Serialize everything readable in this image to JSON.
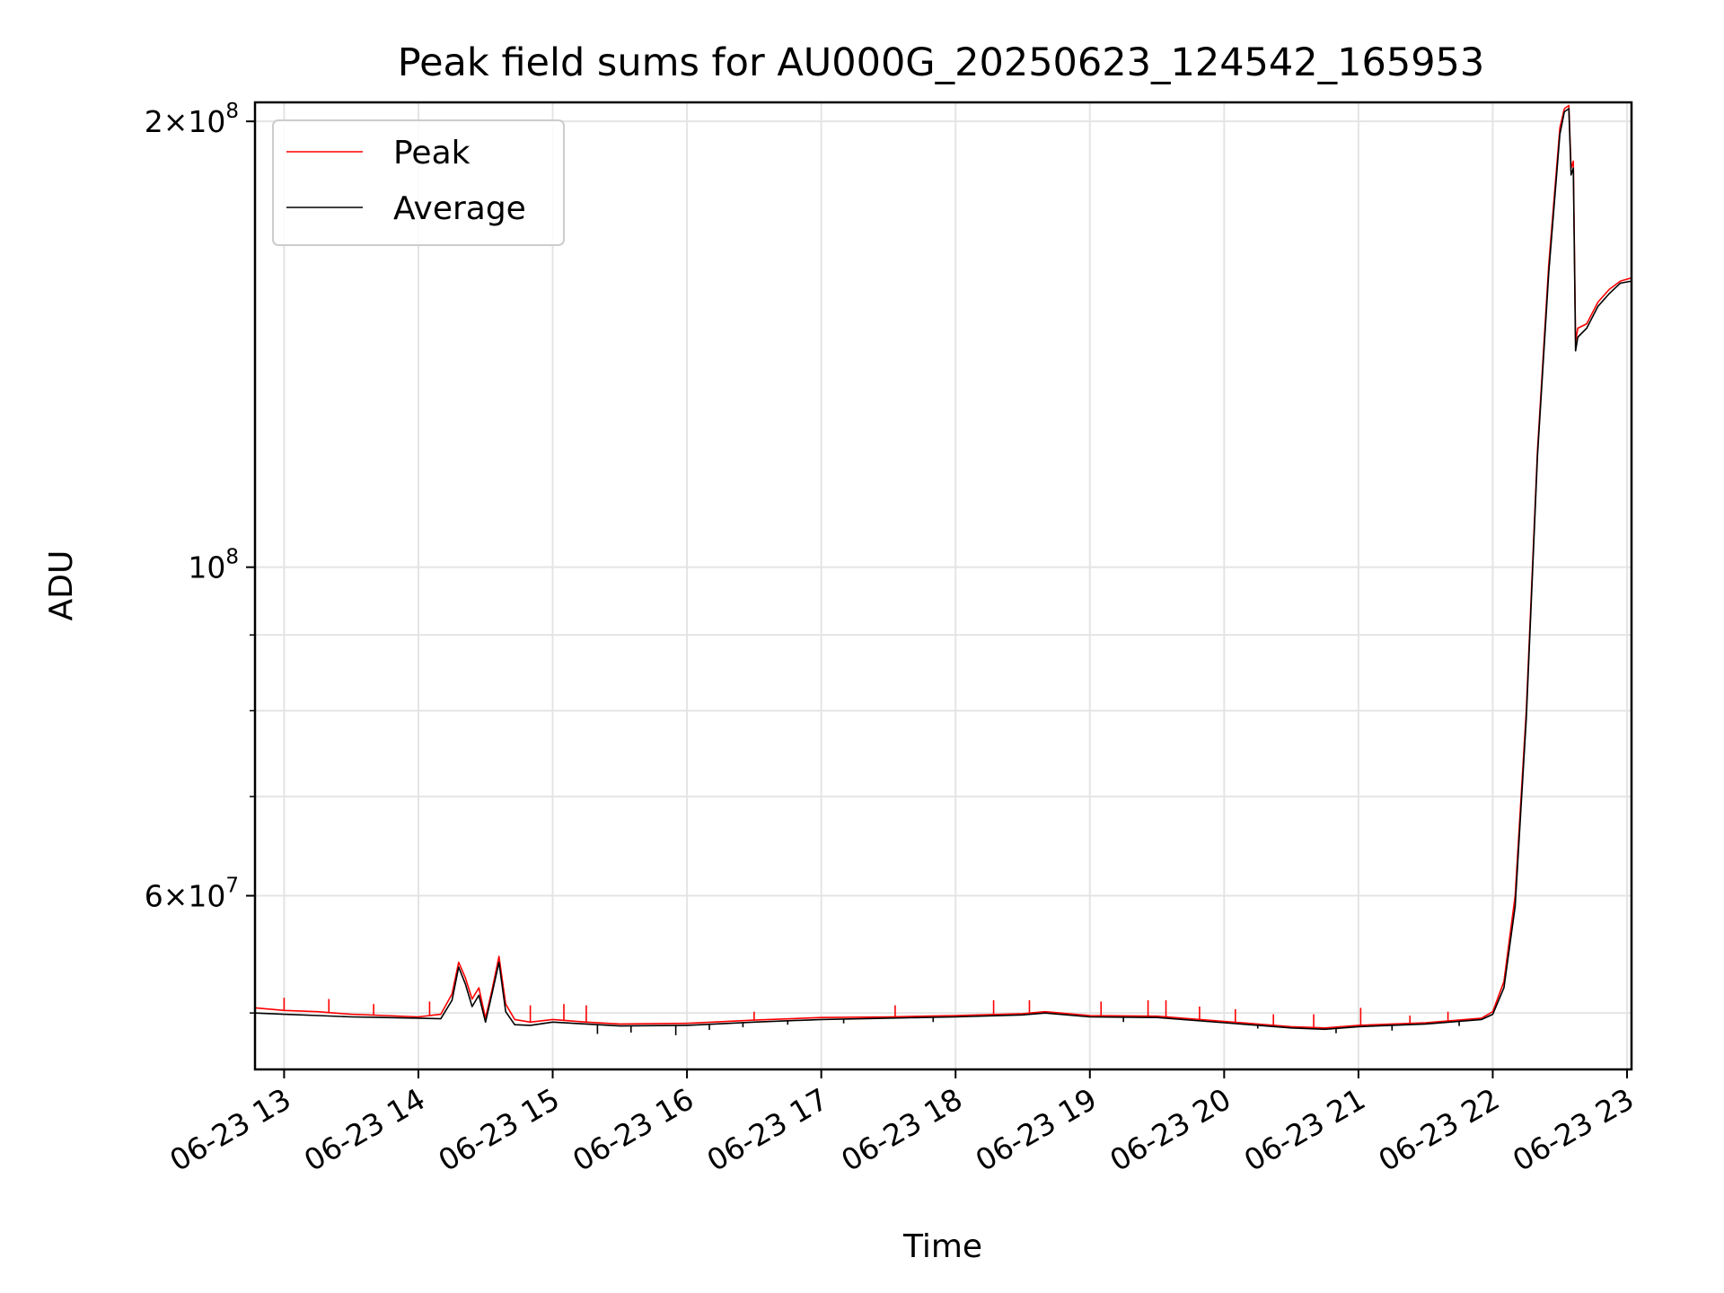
{
  "chart_data": {
    "type": "line",
    "title": "Peak field sums for AU000G_20250623_124542_165953",
    "xlabel": "Time",
    "ylabel": "ADU",
    "yscale": "log",
    "grid": true,
    "legend_position": "top-left",
    "xlim": [
      "2025-06-23 12:47",
      "2025-06-23 23:02"
    ],
    "ylim": [
      45800000,
      206000000
    ],
    "x_ticks": [
      {
        "x": "2025-06-23 13:00",
        "label": "06-23 13"
      },
      {
        "x": "2025-06-23 14:00",
        "label": "06-23 14"
      },
      {
        "x": "2025-06-23 15:00",
        "label": "06-23 15"
      },
      {
        "x": "2025-06-23 16:00",
        "label": "06-23 16"
      },
      {
        "x": "2025-06-23 17:00",
        "label": "06-23 17"
      },
      {
        "x": "2025-06-23 18:00",
        "label": "06-23 18"
      },
      {
        "x": "2025-06-23 19:00",
        "label": "06-23 19"
      },
      {
        "x": "2025-06-23 20:00",
        "label": "06-23 20"
      },
      {
        "x": "2025-06-23 21:00",
        "label": "06-23 21"
      },
      {
        "x": "2025-06-23 22:00",
        "label": "06-23 22"
      },
      {
        "x": "2025-06-23 23:00",
        "label": "06-23 23"
      }
    ],
    "y_major_ticks": [
      {
        "value": 60000000,
        "mantissa": "6",
        "multiplier": "×10",
        "exponent": "7"
      },
      {
        "value": 100000000,
        "mantissa": "",
        "multiplier": "10",
        "exponent": "8"
      },
      {
        "value": 200000000,
        "mantissa": "2",
        "multiplier": "×10",
        "exponent": "8"
      }
    ],
    "y_minor_ticks": [
      50000000,
      70000000,
      80000000,
      90000000
    ],
    "series": [
      {
        "name": "Peak",
        "color": "#ff0000",
        "points": [
          [
            "2025-06-23 12:47",
            50400000
          ],
          [
            "2025-06-23 13:00",
            50200000
          ],
          [
            "2025-06-23 13:15",
            50100000
          ],
          [
            "2025-06-23 13:30",
            49900000
          ],
          [
            "2025-06-23 13:45",
            49800000
          ],
          [
            "2025-06-23 14:00",
            49700000
          ],
          [
            "2025-06-23 14:10",
            49900000
          ],
          [
            "2025-06-23 14:15",
            51500000
          ],
          [
            "2025-06-23 14:18",
            54100000
          ],
          [
            "2025-06-23 14:21",
            52800000
          ],
          [
            "2025-06-23 14:24",
            51100000
          ],
          [
            "2025-06-23 14:27",
            52000000
          ],
          [
            "2025-06-23 14:30",
            49600000
          ],
          [
            "2025-06-23 14:33",
            51900000
          ],
          [
            "2025-06-23 14:36",
            54600000
          ],
          [
            "2025-06-23 14:39",
            50700000
          ],
          [
            "2025-06-23 14:43",
            49500000
          ],
          [
            "2025-06-23 14:50",
            49300000
          ],
          [
            "2025-06-23 15:00",
            49500000
          ],
          [
            "2025-06-23 15:15",
            49300000
          ],
          [
            "2025-06-23 15:30",
            49150000
          ],
          [
            "2025-06-23 16:00",
            49200000
          ],
          [
            "2025-06-23 16:30",
            49450000
          ],
          [
            "2025-06-23 17:00",
            49650000
          ],
          [
            "2025-06-23 17:30",
            49700000
          ],
          [
            "2025-06-23 18:00",
            49800000
          ],
          [
            "2025-06-23 18:30",
            49950000
          ],
          [
            "2025-06-23 18:40",
            50100000
          ],
          [
            "2025-06-23 19:00",
            49800000
          ],
          [
            "2025-06-23 19:30",
            49750000
          ],
          [
            "2025-06-23 20:00",
            49350000
          ],
          [
            "2025-06-23 20:30",
            48950000
          ],
          [
            "2025-06-23 20:45",
            48850000
          ],
          [
            "2025-06-23 21:00",
            49050000
          ],
          [
            "2025-06-23 21:30",
            49250000
          ],
          [
            "2025-06-23 21:55",
            49600000
          ],
          [
            "2025-06-23 22:00",
            50100000
          ],
          [
            "2025-06-23 22:05",
            52500000
          ],
          [
            "2025-06-23 22:10",
            60000000
          ],
          [
            "2025-06-23 22:15",
            80000000
          ],
          [
            "2025-06-23 22:20",
            120000000
          ],
          [
            "2025-06-23 22:25",
            160000000
          ],
          [
            "2025-06-23 22:30",
            198000000
          ],
          [
            "2025-06-23 22:32",
            204000000
          ],
          [
            "2025-06-23 22:34",
            205000000
          ],
          [
            "2025-06-23 22:35",
            186000000
          ],
          [
            "2025-06-23 22:36",
            188000000
          ],
          [
            "2025-06-23 22:37",
            142000000
          ],
          [
            "2025-06-23 22:38",
            145000000
          ],
          [
            "2025-06-23 22:42",
            146000000
          ],
          [
            "2025-06-23 22:47",
            151000000
          ],
          [
            "2025-06-23 22:52",
            154000000
          ],
          [
            "2025-06-23 22:57",
            156000000
          ],
          [
            "2025-06-23 23:02",
            156800000
          ]
        ],
        "spikes": [
          [
            "2025-06-23 13:00",
            51200000
          ],
          [
            "2025-06-23 13:20",
            51100000
          ],
          [
            "2025-06-23 13:40",
            50700000
          ],
          [
            "2025-06-23 14:05",
            50900000
          ],
          [
            "2025-06-23 14:50",
            50600000
          ],
          [
            "2025-06-23 15:05",
            50700000
          ],
          [
            "2025-06-23 15:15",
            50600000
          ],
          [
            "2025-06-23 16:30",
            50100000
          ],
          [
            "2025-06-23 17:33",
            50600000
          ],
          [
            "2025-06-23 18:17",
            51000000
          ],
          [
            "2025-06-23 18:33",
            51000000
          ],
          [
            "2025-06-23 19:05",
            50900000
          ],
          [
            "2025-06-23 19:26",
            51000000
          ],
          [
            "2025-06-23 19:34",
            51000000
          ],
          [
            "2025-06-23 19:49",
            50500000
          ],
          [
            "2025-06-23 20:05",
            50300000
          ],
          [
            "2025-06-23 20:22",
            49900000
          ],
          [
            "2025-06-23 20:40",
            49900000
          ],
          [
            "2025-06-23 21:01",
            50400000
          ],
          [
            "2025-06-23 21:23",
            49800000
          ],
          [
            "2025-06-23 21:40",
            50100000
          ]
        ]
      },
      {
        "name": "Average",
        "color": "#000000",
        "points": [
          [
            "2025-06-23 12:47",
            50000000
          ],
          [
            "2025-06-23 13:00",
            49900000
          ],
          [
            "2025-06-23 13:15",
            49800000
          ],
          [
            "2025-06-23 13:30",
            49700000
          ],
          [
            "2025-06-23 13:45",
            49650000
          ],
          [
            "2025-06-23 14:00",
            49600000
          ],
          [
            "2025-06-23 14:10",
            49550000
          ],
          [
            "2025-06-23 14:15",
            51000000
          ],
          [
            "2025-06-23 14:18",
            53700000
          ],
          [
            "2025-06-23 14:21",
            52300000
          ],
          [
            "2025-06-23 14:24",
            50500000
          ],
          [
            "2025-06-23 14:27",
            51400000
          ],
          [
            "2025-06-23 14:30",
            49300000
          ],
          [
            "2025-06-23 14:33",
            51600000
          ],
          [
            "2025-06-23 14:36",
            54100000
          ],
          [
            "2025-06-23 14:39",
            50100000
          ],
          [
            "2025-06-23 14:43",
            49100000
          ],
          [
            "2025-06-23 14:50",
            49050000
          ],
          [
            "2025-06-23 15:00",
            49300000
          ],
          [
            "2025-06-23 15:15",
            49150000
          ],
          [
            "2025-06-23 15:30",
            49000000
          ],
          [
            "2025-06-23 16:00",
            49050000
          ],
          [
            "2025-06-23 16:30",
            49300000
          ],
          [
            "2025-06-23 17:00",
            49500000
          ],
          [
            "2025-06-23 17:30",
            49600000
          ],
          [
            "2025-06-23 18:00",
            49700000
          ],
          [
            "2025-06-23 18:30",
            49850000
          ],
          [
            "2025-06-23 18:40",
            50000000
          ],
          [
            "2025-06-23 19:00",
            49700000
          ],
          [
            "2025-06-23 19:30",
            49650000
          ],
          [
            "2025-06-23 20:00",
            49250000
          ],
          [
            "2025-06-23 20:30",
            48850000
          ],
          [
            "2025-06-23 20:45",
            48750000
          ],
          [
            "2025-06-23 21:00",
            48950000
          ],
          [
            "2025-06-23 21:30",
            49150000
          ],
          [
            "2025-06-23 21:55",
            49500000
          ],
          [
            "2025-06-23 22:00",
            49900000
          ],
          [
            "2025-06-23 22:05",
            52000000
          ],
          [
            "2025-06-23 22:10",
            59000000
          ],
          [
            "2025-06-23 22:15",
            79000000
          ],
          [
            "2025-06-23 22:20",
            119000000
          ],
          [
            "2025-06-23 22:25",
            158000000
          ],
          [
            "2025-06-23 22:30",
            196000000
          ],
          [
            "2025-06-23 22:32",
            203000000
          ],
          [
            "2025-06-23 22:34",
            204000000
          ],
          [
            "2025-06-23 22:35",
            184000000
          ],
          [
            "2025-06-23 22:36",
            186000000
          ],
          [
            "2025-06-23 22:37",
            140000000
          ],
          [
            "2025-06-23 22:38",
            143000000
          ],
          [
            "2025-06-23 22:42",
            145000000
          ],
          [
            "2025-06-23 22:47",
            150000000
          ],
          [
            "2025-06-23 22:52",
            153000000
          ],
          [
            "2025-06-23 22:57",
            155500000
          ],
          [
            "2025-06-23 23:02",
            156000000
          ]
        ],
        "dips": [
          [
            "2025-06-23 15:20",
            48400000
          ],
          [
            "2025-06-23 15:35",
            48500000
          ],
          [
            "2025-06-23 15:55",
            48300000
          ],
          [
            "2025-06-23 16:10",
            48700000
          ],
          [
            "2025-06-23 16:25",
            48900000
          ],
          [
            "2025-06-23 16:45",
            49100000
          ],
          [
            "2025-06-23 17:10",
            49200000
          ],
          [
            "2025-06-23 17:50",
            49300000
          ],
          [
            "2025-06-23 19:15",
            49300000
          ],
          [
            "2025-06-23 20:15",
            48800000
          ],
          [
            "2025-06-23 20:50",
            48450000
          ],
          [
            "2025-06-23 21:15",
            48650000
          ],
          [
            "2025-06-23 21:45",
            49000000
          ]
        ]
      }
    ]
  }
}
